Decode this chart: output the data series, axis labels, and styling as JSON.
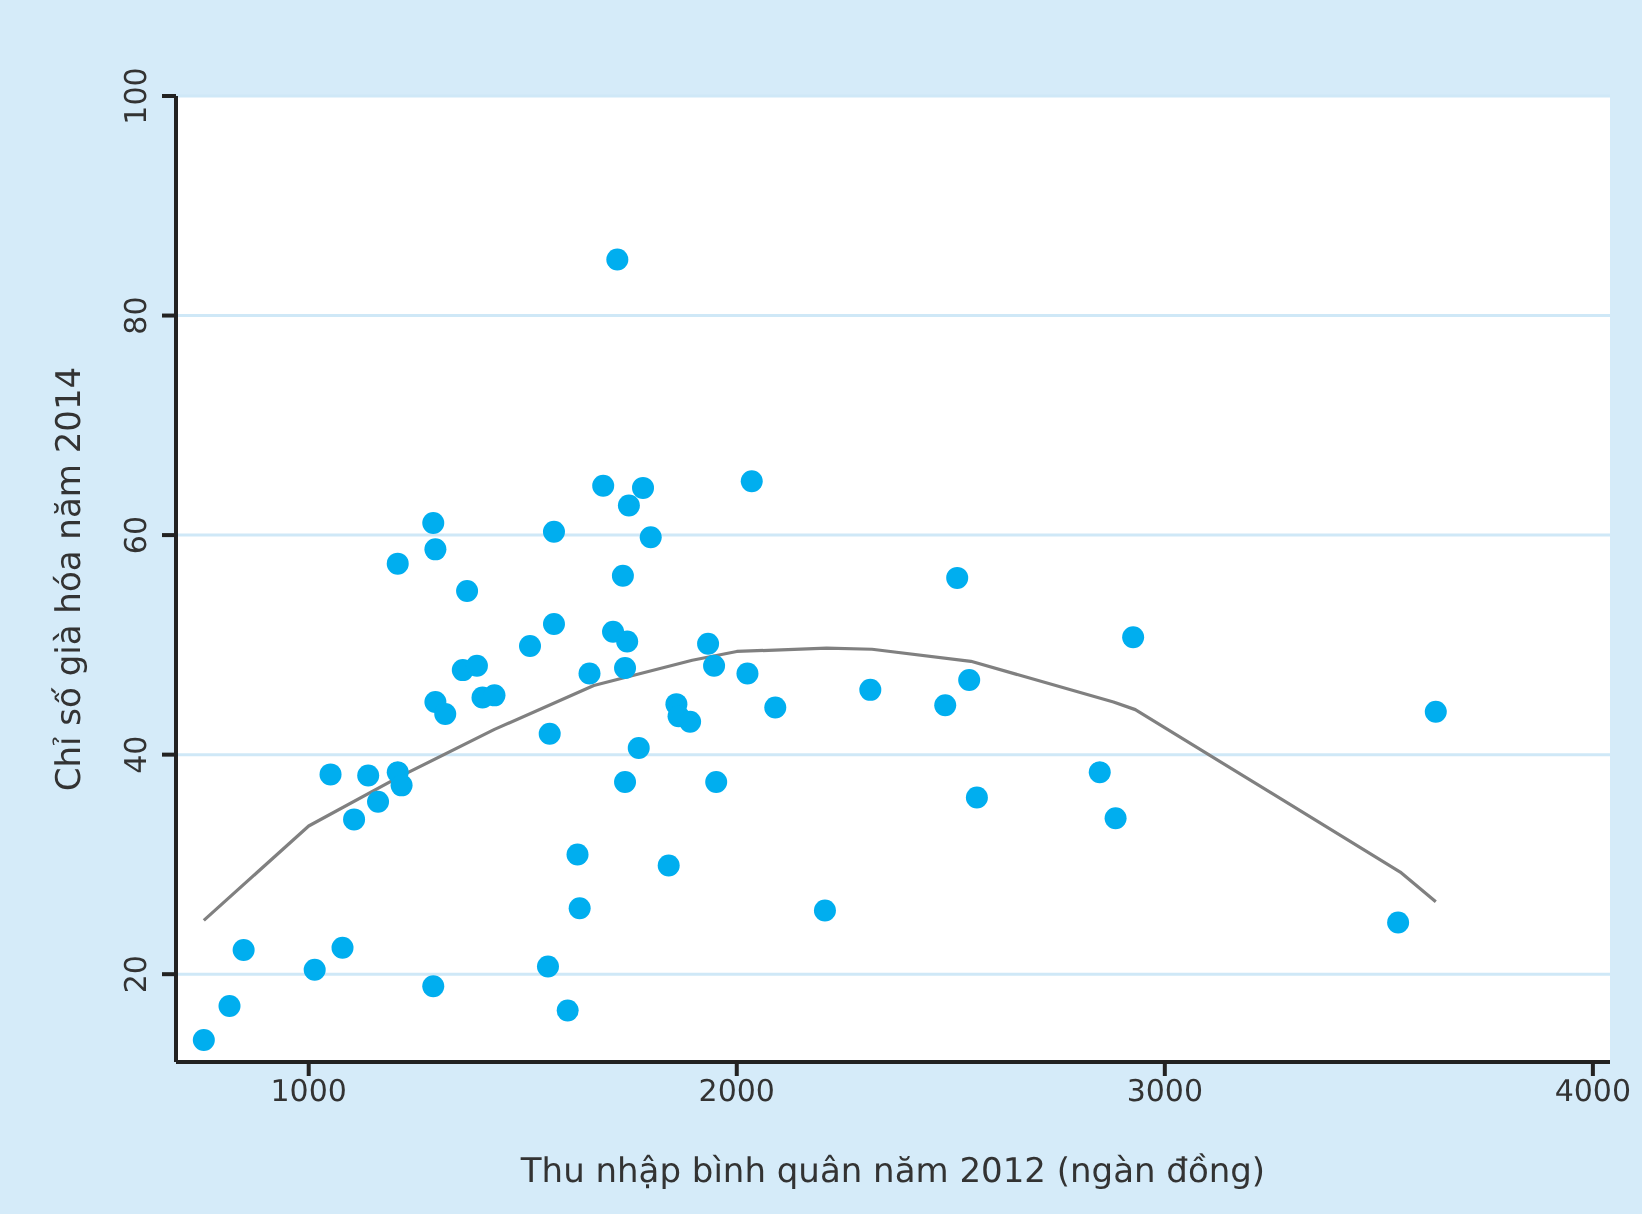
{
  "chart_data": {
    "type": "scatter",
    "xlabel": "Thu nhập bình quân năm 2012 (ngàn đồng)",
    "ylabel": "Chỉ số già hóa năm 2014",
    "xlim": [
      690,
      4040
    ],
    "ylim": [
      12,
      100
    ],
    "xticks": [
      1000,
      2000,
      3000,
      4000
    ],
    "yticks": [
      20,
      40,
      60,
      80,
      100
    ],
    "grid": "y",
    "legend": false,
    "marker": "circle",
    "series": [
      {
        "color": "#00aeef",
        "x": [
          755,
          815,
          848,
          1014,
          1051,
          1079,
          1106,
          1139,
          1162,
          1208,
          1208,
          1217,
          1291,
          1291,
          1296,
          1296,
          1319,
          1370,
          1360,
          1393,
          1406,
          1434,
          1517,
          1559,
          1605,
          1563,
          1573,
          1573,
          1628,
          1633,
          1656,
          1688,
          1711,
          1721,
          1734,
          1744,
          1739,
          1739,
          1748,
          1771,
          1781,
          1799,
          1841,
          1859,
          1864,
          1891,
          1933,
          1947,
          1952,
          2025,
          2035,
          2090,
          2206,
          2312,
          2487,
          2515,
          2543,
          2561,
          2848,
          2885,
          2926,
          3545,
          3633
        ],
        "values": [
          14.0,
          17.1,
          22.2,
          20.4,
          38.2,
          22.4,
          34.1,
          38.1,
          35.7,
          57.4,
          38.4,
          37.2,
          18.9,
          61.1,
          58.7,
          44.8,
          43.7,
          54.9,
          47.7,
          48.1,
          45.2,
          45.4,
          49.9,
          20.7,
          16.7,
          41.9,
          60.3,
          51.9,
          30.9,
          26.0,
          47.4,
          64.5,
          51.2,
          85.1,
          56.3,
          50.3,
          47.9,
          37.5,
          62.7,
          40.6,
          64.3,
          59.8,
          29.9,
          44.6,
          43.5,
          43.0,
          50.1,
          48.1,
          37.5,
          47.4,
          64.9,
          44.3,
          25.8,
          45.9,
          44.5,
          56.1,
          46.8,
          36.1,
          38.4,
          34.2,
          50.7,
          24.7,
          43.9
        ]
      },
      {
        "type": "line",
        "color": "#808080",
        "marker": "none",
        "line_style": "solid",
        "x": [
          755,
          1000,
          1208,
          1434,
          1666,
          1896,
          2000,
          2210,
          2316,
          2547,
          2880,
          2931,
          3550,
          3633
        ],
        "values": [
          24.9,
          33.5,
          37.9,
          42.3,
          46.3,
          48.6,
          49.4,
          49.7,
          49.6,
          48.5,
          44.8,
          44.1,
          29.3,
          26.6
        ]
      }
    ]
  }
}
